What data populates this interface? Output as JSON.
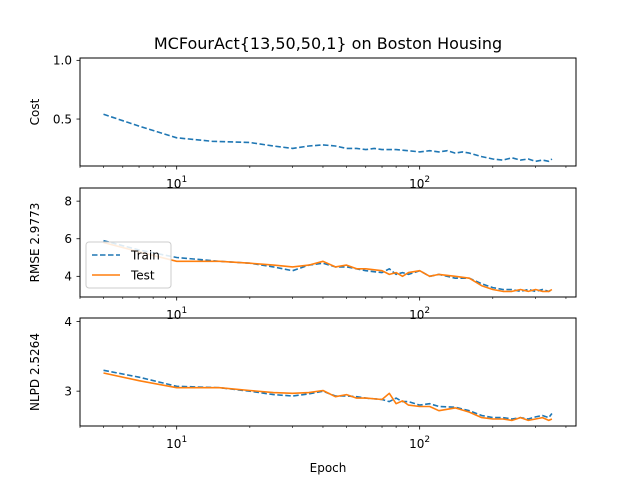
{
  "chart_data": {
    "type": "line",
    "title": "MCFourAct{13,50,50,1} on Boston Housing",
    "xlabel": "Epoch",
    "xscale": "log",
    "xlim": [
      4,
      440
    ],
    "legend": {
      "placement": "lower-left",
      "panel": 1,
      "entries": [
        "Train",
        "Test"
      ]
    },
    "grid": false,
    "colors": {
      "Train": "#1f77b4",
      "Test": "#ff7f0e"
    },
    "x_tick_labels": [
      "10",
      "2"
    ],
    "panels": [
      {
        "ylabel": "Cost",
        "ylim": [
          0.1,
          1.02
        ],
        "yticks": [
          0.5,
          1.0
        ],
        "ytick_labels": [
          "0.5",
          "1.0"
        ],
        "series": [
          {
            "name": "Train",
            "style": "dashed",
            "x": [
              5,
              7,
              10,
              14,
              20,
              25,
              30,
              35,
              40,
              45,
              50,
              55,
              60,
              65,
              70,
              80,
              90,
              100,
              110,
              120,
              130,
              140,
              150,
              160,
              180,
              200,
              220,
              240,
              260,
              280,
              300,
              320,
              340,
              350
            ],
            "y": [
              0.54,
              0.44,
              0.34,
              0.31,
              0.3,
              0.27,
              0.25,
              0.27,
              0.28,
              0.27,
              0.25,
              0.25,
              0.24,
              0.25,
              0.24,
              0.24,
              0.23,
              0.22,
              0.23,
              0.22,
              0.23,
              0.21,
              0.22,
              0.21,
              0.18,
              0.16,
              0.15,
              0.17,
              0.15,
              0.16,
              0.14,
              0.15,
              0.14,
              0.16
            ]
          }
        ]
      },
      {
        "ylabel": "RMSE 2.9773",
        "ylim": [
          2.9,
          8.7
        ],
        "yticks": [
          4,
          6,
          8
        ],
        "ytick_labels": [
          "4",
          "6",
          "8"
        ],
        "series": [
          {
            "name": "Train",
            "style": "dashed",
            "x": [
              5,
              7,
              10,
              15,
              20,
              25,
              30,
              35,
              40,
              45,
              50,
              55,
              60,
              70,
              75,
              80,
              85,
              90,
              100,
              110,
              120,
              140,
              160,
              180,
              200,
              220,
              240,
              260,
              280,
              300,
              320,
              340,
              350
            ],
            "y": [
              5.9,
              5.4,
              5.0,
              4.8,
              4.7,
              4.5,
              4.3,
              4.6,
              4.7,
              4.5,
              4.5,
              4.4,
              4.3,
              4.2,
              4.4,
              4.1,
              4.2,
              4.1,
              4.3,
              4.0,
              4.1,
              3.9,
              3.9,
              3.6,
              3.4,
              3.3,
              3.3,
              3.2,
              3.3,
              3.2,
              3.3,
              3.2,
              3.3
            ]
          },
          {
            "name": "Test",
            "style": "solid",
            "x": [
              5,
              7,
              10,
              15,
              20,
              25,
              30,
              35,
              40,
              45,
              50,
              55,
              60,
              70,
              75,
              80,
              85,
              90,
              100,
              110,
              120,
              140,
              160,
              180,
              200,
              220,
              240,
              260,
              280,
              300,
              320,
              340,
              350
            ],
            "y": [
              5.8,
              5.3,
              4.8,
              4.8,
              4.7,
              4.6,
              4.5,
              4.6,
              4.8,
              4.5,
              4.6,
              4.4,
              4.4,
              4.3,
              4.1,
              4.2,
              4.0,
              4.2,
              4.3,
              4.0,
              4.1,
              4.0,
              3.9,
              3.5,
              3.3,
              3.2,
              3.2,
              3.3,
              3.2,
              3.3,
              3.2,
              3.2,
              3.3
            ]
          }
        ]
      },
      {
        "ylabel": "NLPD 2.5264",
        "ylim": [
          2.5,
          4.05
        ],
        "yticks": [
          3,
          4
        ],
        "ytick_labels": [
          "3",
          "4"
        ],
        "series": [
          {
            "name": "Train",
            "style": "dashed",
            "x": [
              5,
              7,
              10,
              15,
              20,
              25,
              30,
              35,
              40,
              45,
              50,
              55,
              60,
              70,
              75,
              80,
              85,
              90,
              100,
              110,
              120,
              140,
              160,
              180,
              200,
              220,
              240,
              260,
              280,
              300,
              320,
              340,
              350
            ],
            "y": [
              3.3,
              3.2,
              3.07,
              3.05,
              3.0,
              2.95,
              2.93,
              2.96,
              3.0,
              2.93,
              2.93,
              2.92,
              2.9,
              2.88,
              2.85,
              2.9,
              2.85,
              2.85,
              2.8,
              2.82,
              2.78,
              2.77,
              2.72,
              2.65,
              2.62,
              2.62,
              2.6,
              2.62,
              2.6,
              2.63,
              2.65,
              2.62,
              2.68
            ]
          },
          {
            "name": "Test",
            "style": "solid",
            "x": [
              5,
              7,
              10,
              15,
              20,
              25,
              30,
              35,
              40,
              45,
              50,
              55,
              60,
              70,
              75,
              80,
              85,
              90,
              100,
              110,
              120,
              140,
              160,
              180,
              200,
              220,
              240,
              260,
              280,
              300,
              320,
              340,
              350
            ],
            "y": [
              3.26,
              3.15,
              3.05,
              3.05,
              3.01,
              2.98,
              2.97,
              2.98,
              3.01,
              2.92,
              2.95,
              2.9,
              2.9,
              2.88,
              2.97,
              2.82,
              2.86,
              2.8,
              2.78,
              2.78,
              2.72,
              2.76,
              2.7,
              2.62,
              2.6,
              2.6,
              2.58,
              2.62,
              2.58,
              2.6,
              2.62,
              2.58,
              2.6
            ]
          }
        ]
      }
    ]
  }
}
